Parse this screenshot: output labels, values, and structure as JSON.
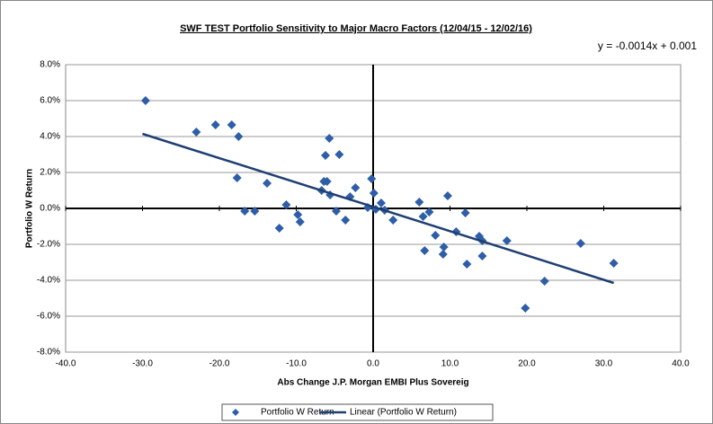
{
  "chart_data": {
    "type": "scatter",
    "title": "SWF TEST Portfolio Sensitivity to Major Macro Factors (12/04/15 - 12/02/16)",
    "annotation": "y = -0.0014x + 0.001",
    "x_label": "Abs Change J.P. Morgan EMBI Plus Sovereig",
    "y_label": "Portfolio W Return",
    "xlim": [
      -40,
      40
    ],
    "ylim": [
      -8,
      8
    ],
    "xticks": [
      {
        "value": -40,
        "label": "-40.0"
      },
      {
        "value": -30,
        "label": "-30.0"
      },
      {
        "value": -20,
        "label": "-20.0"
      },
      {
        "value": -10,
        "label": "-10.0"
      },
      {
        "value": 0,
        "label": "0.0"
      },
      {
        "value": 10,
        "label": "10.0"
      },
      {
        "value": 20,
        "label": "20.0"
      },
      {
        "value": 30,
        "label": "30.0"
      },
      {
        "value": 40,
        "label": "40.0"
      }
    ],
    "yticks": [
      {
        "value": -8,
        "label": "-8.0%"
      },
      {
        "value": -6,
        "label": "-6.0%"
      },
      {
        "value": -4,
        "label": "-4.0%"
      },
      {
        "value": -2,
        "label": "-2.0%"
      },
      {
        "value": 0,
        "label": "0.0%"
      },
      {
        "value": 2,
        "label": "2.0%"
      },
      {
        "value": 4,
        "label": "4.0%"
      },
      {
        "value": 6,
        "label": "6.0%"
      },
      {
        "value": 8,
        "label": "8.0%"
      }
    ],
    "grid": true,
    "series": [
      {
        "name": "Portfolio W Return",
        "color": "#2e5ea8",
        "x": [
          -29.6,
          -23.0,
          -20.5,
          -18.4,
          -17.5,
          -17.7,
          -16.7,
          -15.4,
          -13.8,
          -12.2,
          -11.3,
          -9.8,
          -9.5,
          -6.7,
          -6.2,
          -6.0,
          -5.7,
          -5.6,
          -6.4,
          -4.8,
          -4.4,
          -3.6,
          -3.0,
          -2.3,
          -0.7,
          -0.2,
          0.1,
          0.35,
          1.05,
          1.5,
          2.6,
          6.0,
          6.5,
          6.7,
          7.3,
          8.1,
          9.2,
          9.1,
          9.7,
          10.8,
          12.0,
          12.2,
          13.8,
          14.2,
          14.2,
          17.4,
          19.8,
          22.3,
          27.0,
          31.3
        ],
        "values": [
          6.0,
          4.25,
          4.65,
          4.65,
          4.0,
          1.7,
          -0.15,
          -0.15,
          1.4,
          -1.1,
          0.2,
          -0.35,
          -0.75,
          1.0,
          2.95,
          1.5,
          3.9,
          0.75,
          1.5,
          -0.15,
          3.0,
          -0.65,
          0.65,
          1.15,
          0.05,
          1.65,
          0.85,
          -0.05,
          0.3,
          -0.1,
          -0.65,
          0.35,
          -0.45,
          -2.35,
          -0.2,
          -1.5,
          -2.15,
          -2.55,
          0.7,
          -1.3,
          -0.25,
          -3.1,
          -1.55,
          -1.8,
          -2.65,
          -1.8,
          -5.55,
          -4.05,
          -1.95,
          -3.05
        ]
      },
      {
        "name": "Linear (Portfolio W Return)",
        "color": "#1f3f73",
        "trendline": true,
        "x": [
          -30,
          31.3
        ],
        "values": [
          4.15,
          -4.15
        ]
      }
    ]
  }
}
